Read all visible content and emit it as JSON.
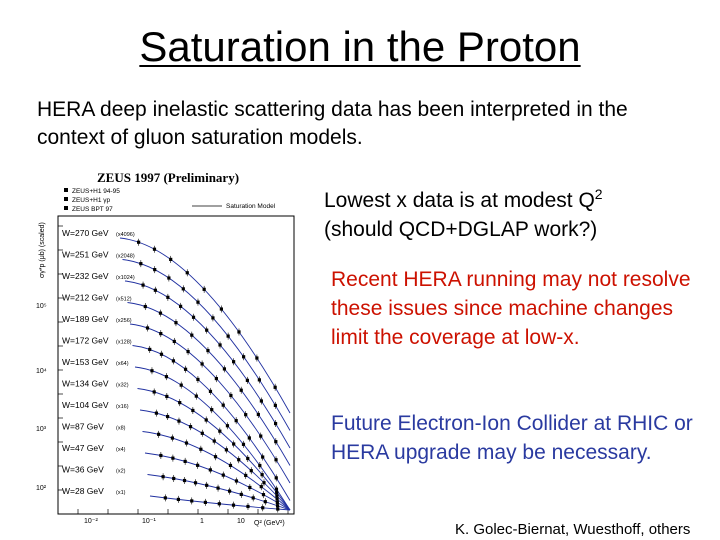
{
  "slide": {
    "title": "Saturation in the Proton",
    "intro": "HERA deep inelastic scattering data has been interpreted in the context of gluon saturation models.",
    "bullet1_main": "Lowest x data is at modest Q",
    "bullet1_sup": "2",
    "bullet1_rest": "(should QCD+DGLAP work?)",
    "bullet2": "Recent HERA running may not resolve these issues since machine changes limit the coverage at low-x.",
    "bullet3": "Future Electron-Ion Collider at RHIC or HERA upgrade may be necessary.",
    "credit": "K. Golec-Biernat, Wuesthoff, others",
    "colors": {
      "bullet2": "#cc1100",
      "bullet3": "#2a3aa0"
    }
  },
  "figure": {
    "header": "ZEUS 1997 (Preliminary)",
    "legend": [
      "ZEUS+H1 94-95",
      "ZEUS+H1 γp",
      "ZEUS BPT 97"
    ],
    "model_label": "Saturation Model",
    "ylabel": "σγ*p (μb) (scaled)",
    "xlabel": "Q² (GeV²)",
    "xticks": [
      "10⁻²",
      "10⁻¹",
      "1",
      "10"
    ],
    "yticks": [
      "10⁵",
      "10⁴",
      "10³",
      "10²"
    ],
    "chart_data": {
      "type": "scatter",
      "title": "ZEUS 1997 (Preliminary)",
      "xlabel": "Q² (GeV²)",
      "ylabel": "σγ*p (μb) (scaled)",
      "x_scale": "log",
      "y_scale": "log",
      "series": [
        {
          "name": "W=270 GeV",
          "scale": "x4096"
        },
        {
          "name": "W=251 GeV",
          "scale": "x2048"
        },
        {
          "name": "W=232 GeV",
          "scale": "x1024"
        },
        {
          "name": "W=212 GeV",
          "scale": "x512"
        },
        {
          "name": "W=189 GeV",
          "scale": "x256"
        },
        {
          "name": "W=172 GeV",
          "scale": "x128"
        },
        {
          "name": "W=153 GeV",
          "scale": "x64"
        },
        {
          "name": "W=134 GeV",
          "scale": "x32"
        },
        {
          "name": "W=104 GeV",
          "scale": "x16"
        },
        {
          "name": "W=87 GeV",
          "scale": "x8"
        },
        {
          "name": "W=47 GeV",
          "scale": "x4"
        },
        {
          "name": "W=36 GeV",
          "scale": "x2"
        },
        {
          "name": "W=28 GeV",
          "scale": "x1"
        }
      ]
    }
  }
}
